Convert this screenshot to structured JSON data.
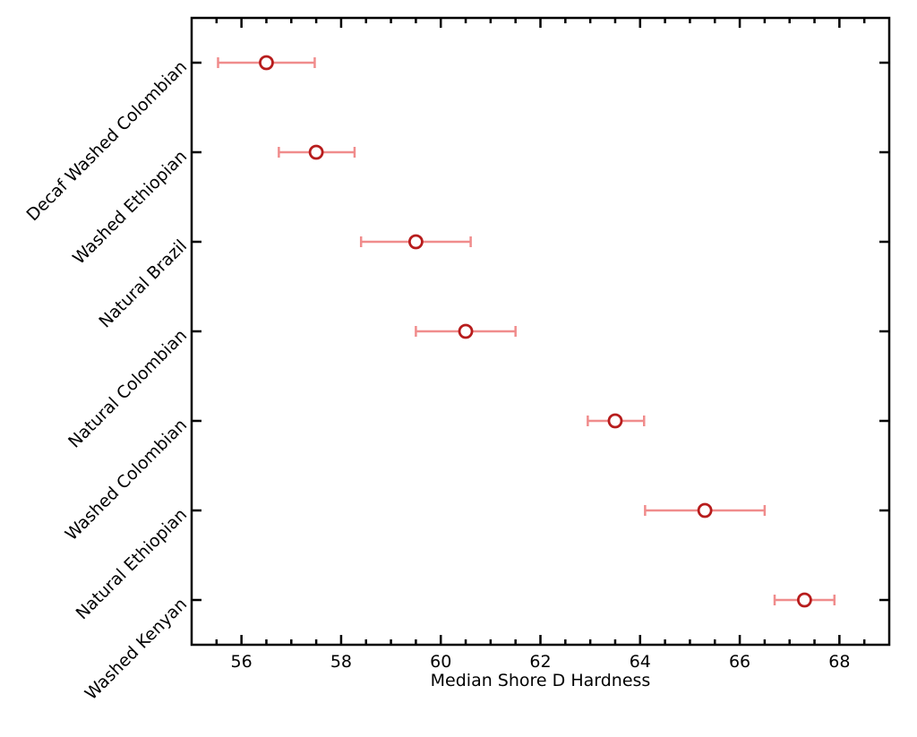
{
  "chart_data": {
    "type": "scatter",
    "title": "",
    "xlabel": "Median Shore D Hardness",
    "ylabel": "",
    "xlim": [
      55,
      69
    ],
    "x_major_ticks": [
      56,
      58,
      60,
      62,
      64,
      66,
      68
    ],
    "x_minor_step": 0.5,
    "grid": false,
    "categories": [
      "Decaf Washed Colombian",
      "Washed Ethiopian",
      "Natural Brazil",
      "Natural Colombian",
      "Washed Colombian",
      "Natural Ethiopian",
      "Washed Kenyan"
    ],
    "values": [
      56.5,
      57.5,
      59.5,
      60.5,
      63.5,
      65.3,
      67.3
    ],
    "error_low": [
      55.53,
      56.75,
      58.4,
      59.5,
      62.95,
      64.1,
      66.7
    ],
    "error_high": [
      57.47,
      58.27,
      60.6,
      61.5,
      64.08,
      66.5,
      67.9
    ],
    "colors": {
      "marker": "#b71c1c",
      "errorbar": "#f08c8c",
      "axis": "#000000"
    }
  }
}
